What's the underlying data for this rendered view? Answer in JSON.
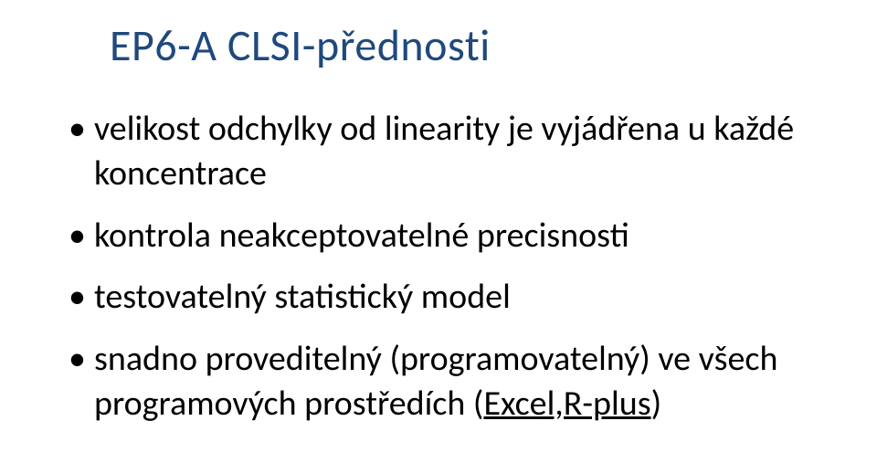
{
  "title": "EP6-A CLSI-přednosti",
  "title_color": "#1f497d",
  "title_fontsize": 48,
  "bullet_fontsize": 38,
  "text_color": "#000000",
  "background_color": "#ffffff",
  "bullets": [
    {
      "text": "velikost odchylky od linearity je vyjádřena u každé koncentrace"
    },
    {
      "text": "kontrola neakceptovatelné precisnosti"
    },
    {
      "text": "testovatelný statistický model"
    },
    {
      "text": "snadno proveditelný (programovatelný) ve všech programových prostředích (",
      "link": "Excel,R-plus",
      "after": ")"
    }
  ]
}
